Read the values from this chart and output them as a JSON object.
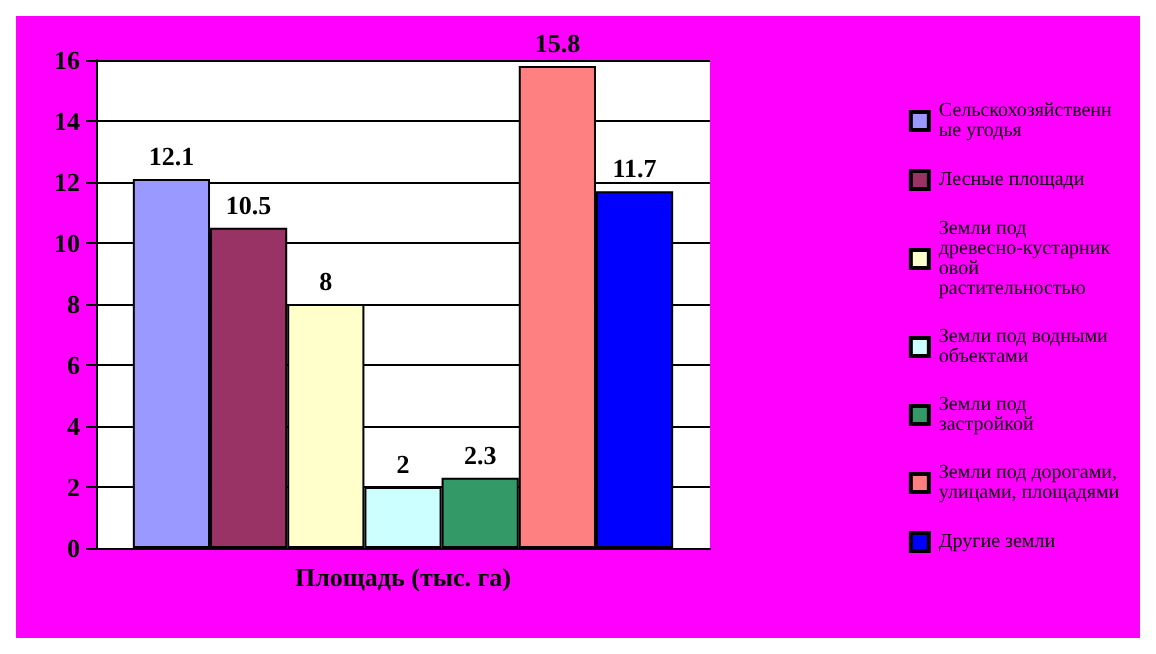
{
  "chart_data": {
    "type": "bar",
    "categories": [
      "Площадь (тыс. га)"
    ],
    "series": [
      {
        "name": "Сельскохозяйственные угодья",
        "color": "#9999ff",
        "values": [
          12.1
        ]
      },
      {
        "name": "Лесные площади",
        "color": "#993366",
        "values": [
          10.5
        ]
      },
      {
        "name": "Земли под древесно-кустарниковой растительностью",
        "color": "#ffffcc",
        "values": [
          8
        ]
      },
      {
        "name": "Земли под водными объектами",
        "color": "#ccffff",
        "values": [
          2
        ]
      },
      {
        "name": "Земли под застройкой",
        "color": "#339966",
        "values": [
          2.3
        ]
      },
      {
        "name": "Земли под дорогами, улицами, площадями",
        "color": "#ff8080",
        "values": [
          15.8
        ]
      },
      {
        "name": "Другие земли",
        "color": "#0000ff",
        "values": [
          11.7
        ]
      }
    ],
    "ylim": [
      0,
      16
    ],
    "yticks": [
      0,
      2,
      4,
      6,
      8,
      10,
      12,
      14,
      16
    ],
    "grid": "y",
    "legend": "right",
    "data_labels": true
  }
}
